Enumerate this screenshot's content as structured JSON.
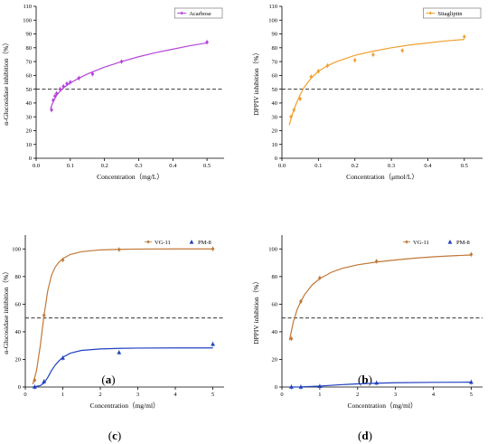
{
  "chart_data": [
    {
      "id": "a",
      "type": "scatter",
      "panel_label": "a",
      "xlabel": "Concentration（mg/L）",
      "ylabel": "α-Glucosidase inhibition（%）",
      "xlim": [
        0,
        0.55
      ],
      "ylim": [
        0,
        110
      ],
      "xticks": [
        "0.0",
        "0.1",
        "0.2",
        "0.3",
        "0.4",
        "0.5"
      ],
      "xtick_values": [
        0,
        0.1,
        0.2,
        0.3,
        0.4,
        0.5
      ],
      "yticks": [
        "0",
        "10",
        "20",
        "30",
        "40",
        "50",
        "60",
        "70",
        "80",
        "90",
        "100",
        "110"
      ],
      "ytick_values": [
        0,
        10,
        20,
        30,
        40,
        50,
        60,
        70,
        80,
        90,
        100,
        110
      ],
      "reference_line_y": 50,
      "legend_position": "top-right",
      "legend_boxed": true,
      "series": [
        {
          "name": "Acarbose",
          "color": "#b545d8",
          "marker": "diamond",
          "x": [
            0.045,
            0.05,
            0.055,
            0.06,
            0.07,
            0.08,
            0.09,
            0.1,
            0.125,
            0.165,
            0.25,
            0.5
          ],
          "y": [
            35,
            42,
            45,
            47,
            50,
            52,
            54,
            55,
            58,
            61,
            70,
            84
          ],
          "fit_x": [
            0.042,
            0.05,
            0.06,
            0.07,
            0.08,
            0.1,
            0.125,
            0.15,
            0.2,
            0.25,
            0.3,
            0.35,
            0.4,
            0.45,
            0.5
          ],
          "fit_y": [
            36,
            41,
            45.5,
            48.5,
            51,
            54.5,
            58,
            61,
            66,
            70,
            73.5,
            76.5,
            79,
            81.5,
            83.5
          ]
        }
      ]
    },
    {
      "id": "b",
      "type": "scatter",
      "panel_label": "b",
      "xlabel": "Concentration（μmol/L）",
      "ylabel": "DPPIV inhibition（%）",
      "xlim": [
        0,
        0.55
      ],
      "ylim": [
        0,
        110
      ],
      "xticks": [
        "0.0",
        "0.1",
        "0.2",
        "0.3",
        "0.4",
        "0.5"
      ],
      "xtick_values": [
        0,
        0.1,
        0.2,
        0.3,
        0.4,
        0.5
      ],
      "yticks": [
        "0",
        "10",
        "20",
        "30",
        "40",
        "50",
        "60",
        "70",
        "80",
        "90",
        "100",
        "110"
      ],
      "ytick_values": [
        0,
        10,
        20,
        30,
        40,
        50,
        60,
        70,
        80,
        90,
        100,
        110
      ],
      "reference_line_y": 50,
      "legend_position": "top-right",
      "legend_boxed": true,
      "series": [
        {
          "name": "Sitagliptin",
          "color": "#f0a030",
          "marker": "diamond",
          "x": [
            0.025,
            0.033,
            0.05,
            0.08,
            0.1,
            0.125,
            0.2,
            0.25,
            0.33,
            0.5
          ],
          "y": [
            30,
            35,
            43,
            59,
            63,
            67,
            71,
            75,
            78,
            88
          ],
          "fit_x": [
            0.02,
            0.03,
            0.04,
            0.05,
            0.06,
            0.08,
            0.1,
            0.125,
            0.15,
            0.2,
            0.25,
            0.3,
            0.35,
            0.4,
            0.45,
            0.5
          ],
          "fit_y": [
            24,
            33,
            40,
            46,
            51,
            58,
            63,
            67,
            70,
            74.5,
            77.5,
            80,
            82,
            83.5,
            85,
            86
          ]
        }
      ]
    },
    {
      "id": "c",
      "type": "scatter",
      "panel_label": "c",
      "xlabel": "Concentration（mg/ml）",
      "ylabel": "α-Glucosidase inhibition（%）",
      "xlim": [
        0,
        5.3
      ],
      "ylim": [
        0,
        110
      ],
      "xticks": [
        "0",
        "1",
        "2",
        "3",
        "4",
        "5"
      ],
      "xtick_values": [
        0,
        1,
        2,
        3,
        4,
        5
      ],
      "yticks": [
        "0",
        "20",
        "40",
        "60",
        "80",
        "100"
      ],
      "ytick_values": [
        0,
        20,
        40,
        60,
        80,
        100
      ],
      "reference_line_y": 50,
      "legend_position": "top-right",
      "legend_boxed": false,
      "series": [
        {
          "name": "VG-11",
          "color": "#c07838",
          "marker": "diamond",
          "x": [
            0.25,
            0.5,
            1.0,
            2.5,
            5.0
          ],
          "y": [
            5,
            52,
            92,
            99.5,
            100
          ],
          "fit_x": [
            0.2,
            0.3,
            0.4,
            0.5,
            0.6,
            0.7,
            0.8,
            0.9,
            1.0,
            1.2,
            1.5,
            2.0,
            2.5,
            3.0,
            4.0,
            5.0
          ],
          "fit_y": [
            2,
            12,
            30,
            52,
            70,
            81,
            87,
            90.5,
            93,
            96,
            98,
            99.3,
            99.7,
            99.9,
            100,
            100
          ]
        },
        {
          "name": "PM-8",
          "color": "#2040c0",
          "marker": "triangle",
          "x": [
            0.25,
            0.5,
            1.0,
            2.5,
            5.0
          ],
          "y": [
            0,
            4,
            21,
            25,
            31
          ],
          "fit_x": [
            0.2,
            0.4,
            0.5,
            0.6,
            0.7,
            0.8,
            0.9,
            1.0,
            1.2,
            1.5,
            2.0,
            2.5,
            3.0,
            4.0,
            5.0
          ],
          "fit_y": [
            0,
            1,
            3,
            7,
            12,
            16,
            19,
            21.5,
            24.5,
            26.5,
            27.6,
            28,
            28.2,
            28.3,
            28.3
          ]
        }
      ]
    },
    {
      "id": "d",
      "type": "scatter",
      "panel_label": "d",
      "xlabel": "Concentration（mg/ml）",
      "ylabel": "DPPIV inhibition（%）",
      "xlim": [
        0,
        5.3
      ],
      "ylim": [
        0,
        110
      ],
      "xticks": [
        "0",
        "1",
        "2",
        "3",
        "4",
        "5"
      ],
      "xtick_values": [
        0,
        1,
        2,
        3,
        4,
        5
      ],
      "yticks": [
        "0",
        "20",
        "40",
        "60",
        "80",
        "100"
      ],
      "ytick_values": [
        0,
        20,
        40,
        60,
        80,
        100
      ],
      "reference_line_y": 50,
      "legend_position": "top-right",
      "legend_boxed": false,
      "series": [
        {
          "name": "VG-11",
          "color": "#c07838",
          "marker": "diamond",
          "x": [
            0.25,
            0.5,
            1.0,
            2.5,
            5.0
          ],
          "y": [
            35,
            62,
            79,
            91,
            96
          ],
          "fit_x": [
            0.2,
            0.3,
            0.4,
            0.5,
            0.6,
            0.8,
            1.0,
            1.3,
            1.6,
            2.0,
            2.5,
            3.0,
            3.5,
            4.0,
            4.5,
            5.0
          ],
          "fit_y": [
            34,
            47,
            56,
            62,
            67,
            74,
            78.5,
            83,
            86,
            88.5,
            90.5,
            92,
            93.3,
            94.3,
            95,
            95.6
          ]
        },
        {
          "name": "PM-8",
          "color": "#2040c0",
          "marker": "triangle",
          "x": [
            0.25,
            0.5,
            1.0,
            2.5,
            5.0
          ],
          "y": [
            0,
            0,
            0.5,
            3,
            3.5
          ],
          "fit_x": [
            0.2,
            0.5,
            1.0,
            1.5,
            2.0,
            2.5,
            3.0,
            4.0,
            5.0
          ],
          "fit_y": [
            0,
            0.1,
            0.7,
            1.6,
            2.3,
            2.8,
            3.1,
            3.4,
            3.5
          ]
        }
      ]
    }
  ]
}
